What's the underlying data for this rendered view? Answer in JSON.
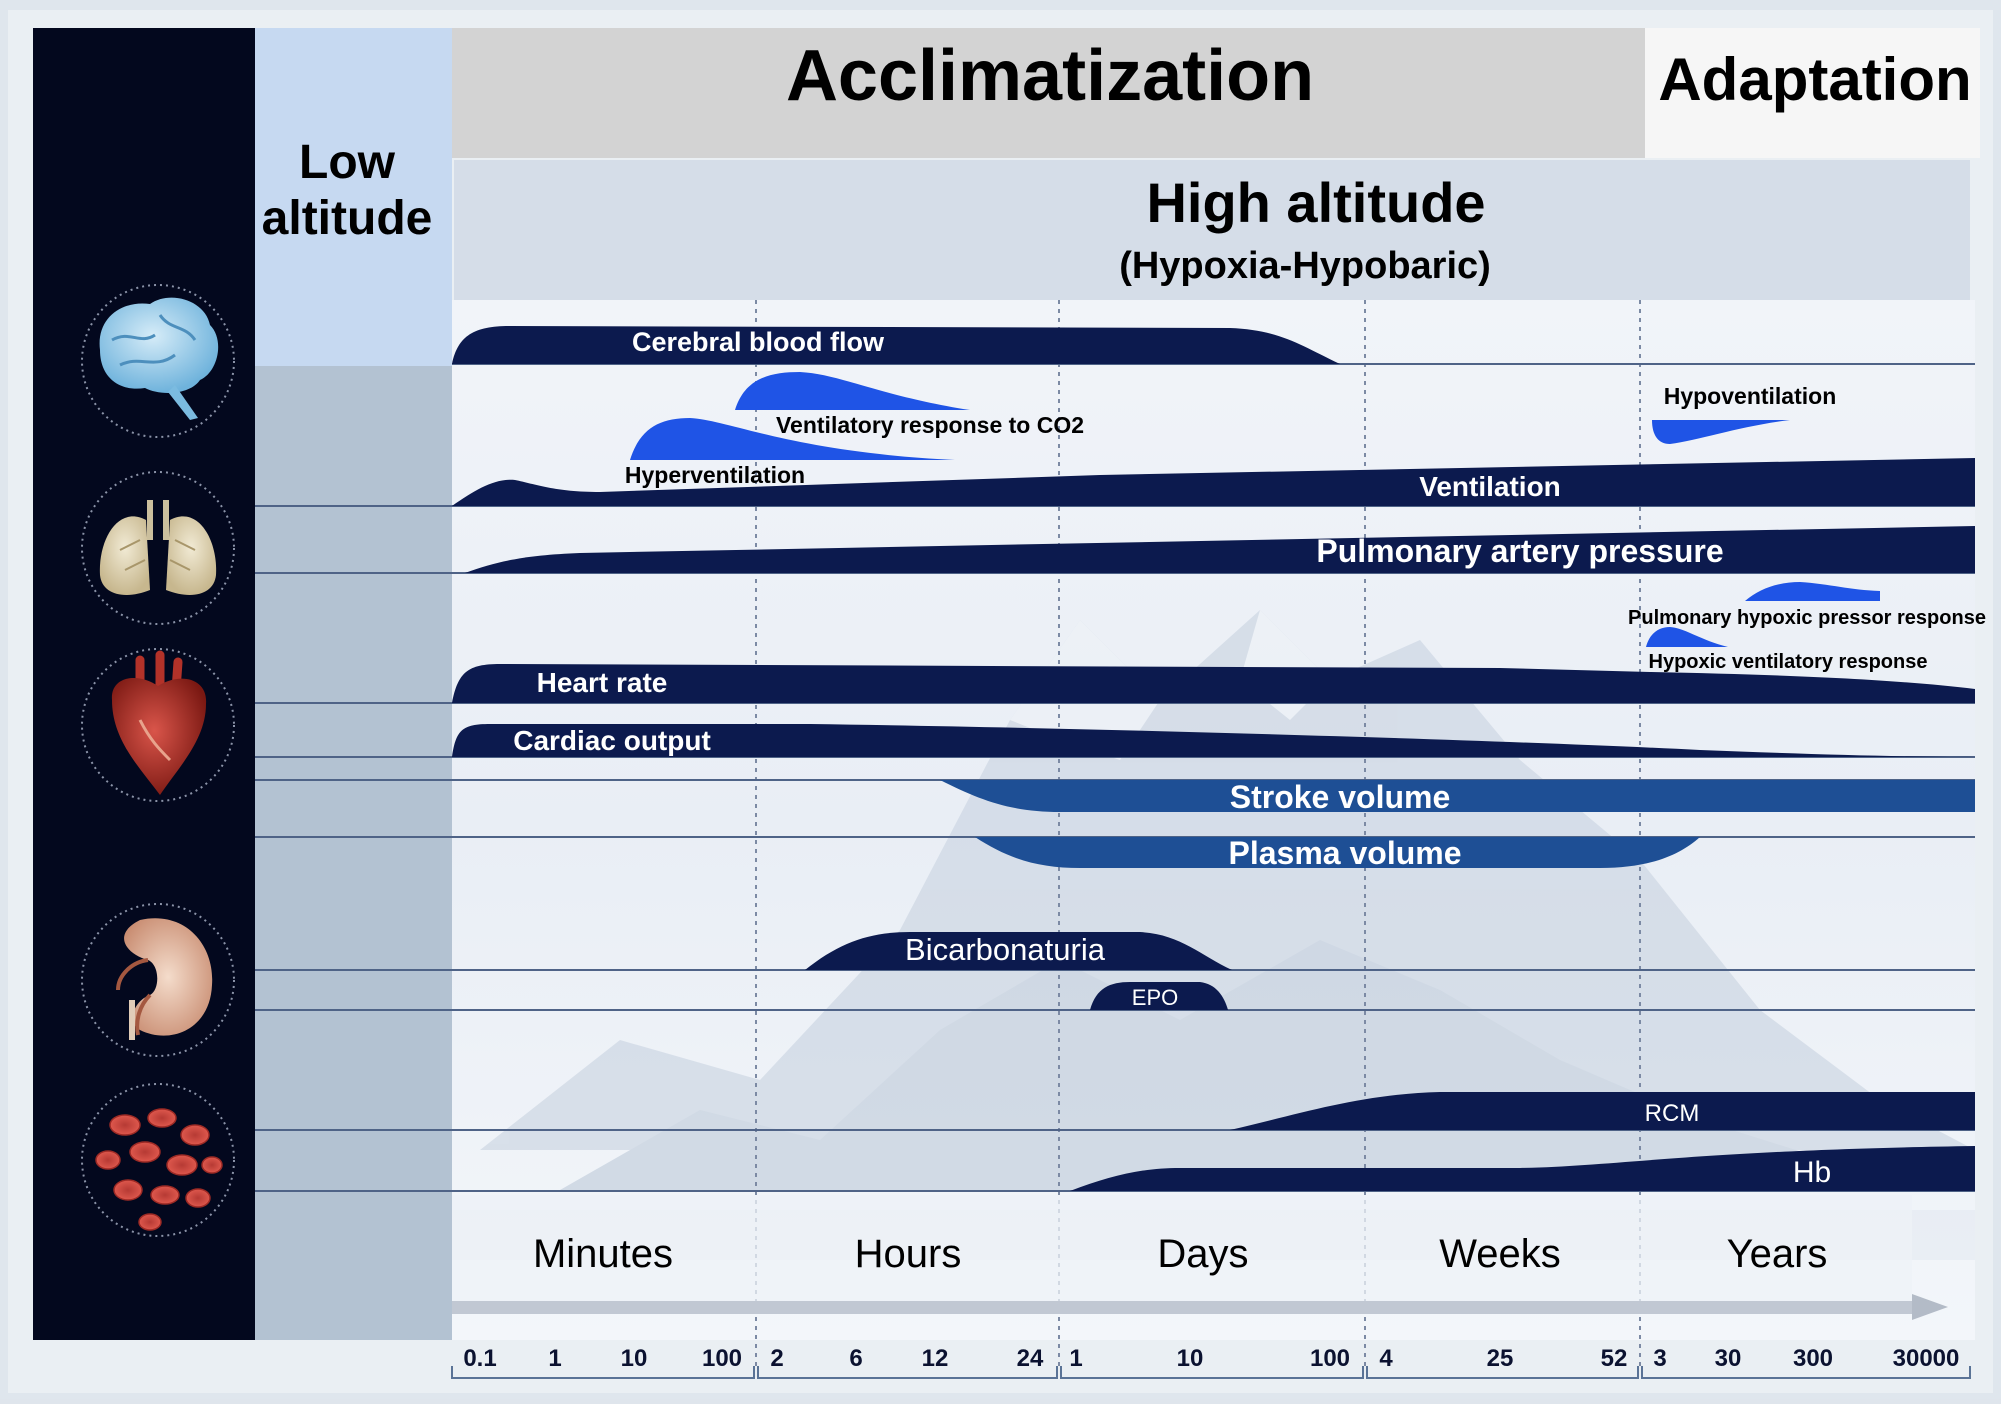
{
  "header": {
    "acclimatization": "Acclimatization",
    "adaptation": "Adaptation",
    "low_altitude_line1": "Low",
    "low_altitude_line2": "altitude",
    "high_altitude": "High altitude",
    "high_altitude_sub": "(Hypoxia-Hypobaric)"
  },
  "organs": [
    "brain-icon",
    "lungs-icon",
    "heart-icon",
    "kidney-icon",
    "red-blood-cells-icon"
  ],
  "bands": {
    "cerebral_blood_flow": "Cerebral blood flow",
    "ventilatory_response_co2": "Ventilatory response to CO2",
    "hyperventilation": "Hyperventilation",
    "hypoventilation": "Hypoventilation",
    "ventilation": "Ventilation",
    "pulmonary_artery_pressure": "Pulmonary artery pressure",
    "pulmonary_hypoxic_pressor_response": "Pulmonary hypoxic pressor response",
    "hypoxic_ventilatory_response": "Hypoxic ventilatory response",
    "heart_rate": "Heart rate",
    "cardiac_output": "Cardiac output",
    "stroke_volume": "Stroke volume",
    "plasma_volume": "Plasma volume",
    "bicarbonaturia": "Bicarbonaturia",
    "epo": "EPO",
    "rcm": "RCM",
    "hb": "Hb"
  },
  "timeline": {
    "units": [
      "Minutes",
      "Hours",
      "Days",
      "Weeks",
      "Years"
    ],
    "ticks": [
      [
        "0.1",
        "1",
        "10",
        "100"
      ],
      [
        "2",
        "6",
        "12",
        "24"
      ],
      [
        "1",
        "10",
        "100"
      ],
      [
        "4",
        "25",
        "52"
      ],
      [
        "3",
        "30",
        "300",
        "30000"
      ]
    ]
  },
  "colors": {
    "navy": "#0c1a4e",
    "mid_blue": "#1e4f95",
    "bright_blue": "#1f54e6",
    "sidebar": "#03081e",
    "low_alt_top": "#c6d9f1",
    "low_alt_bottom": "#b3c2d2"
  }
}
